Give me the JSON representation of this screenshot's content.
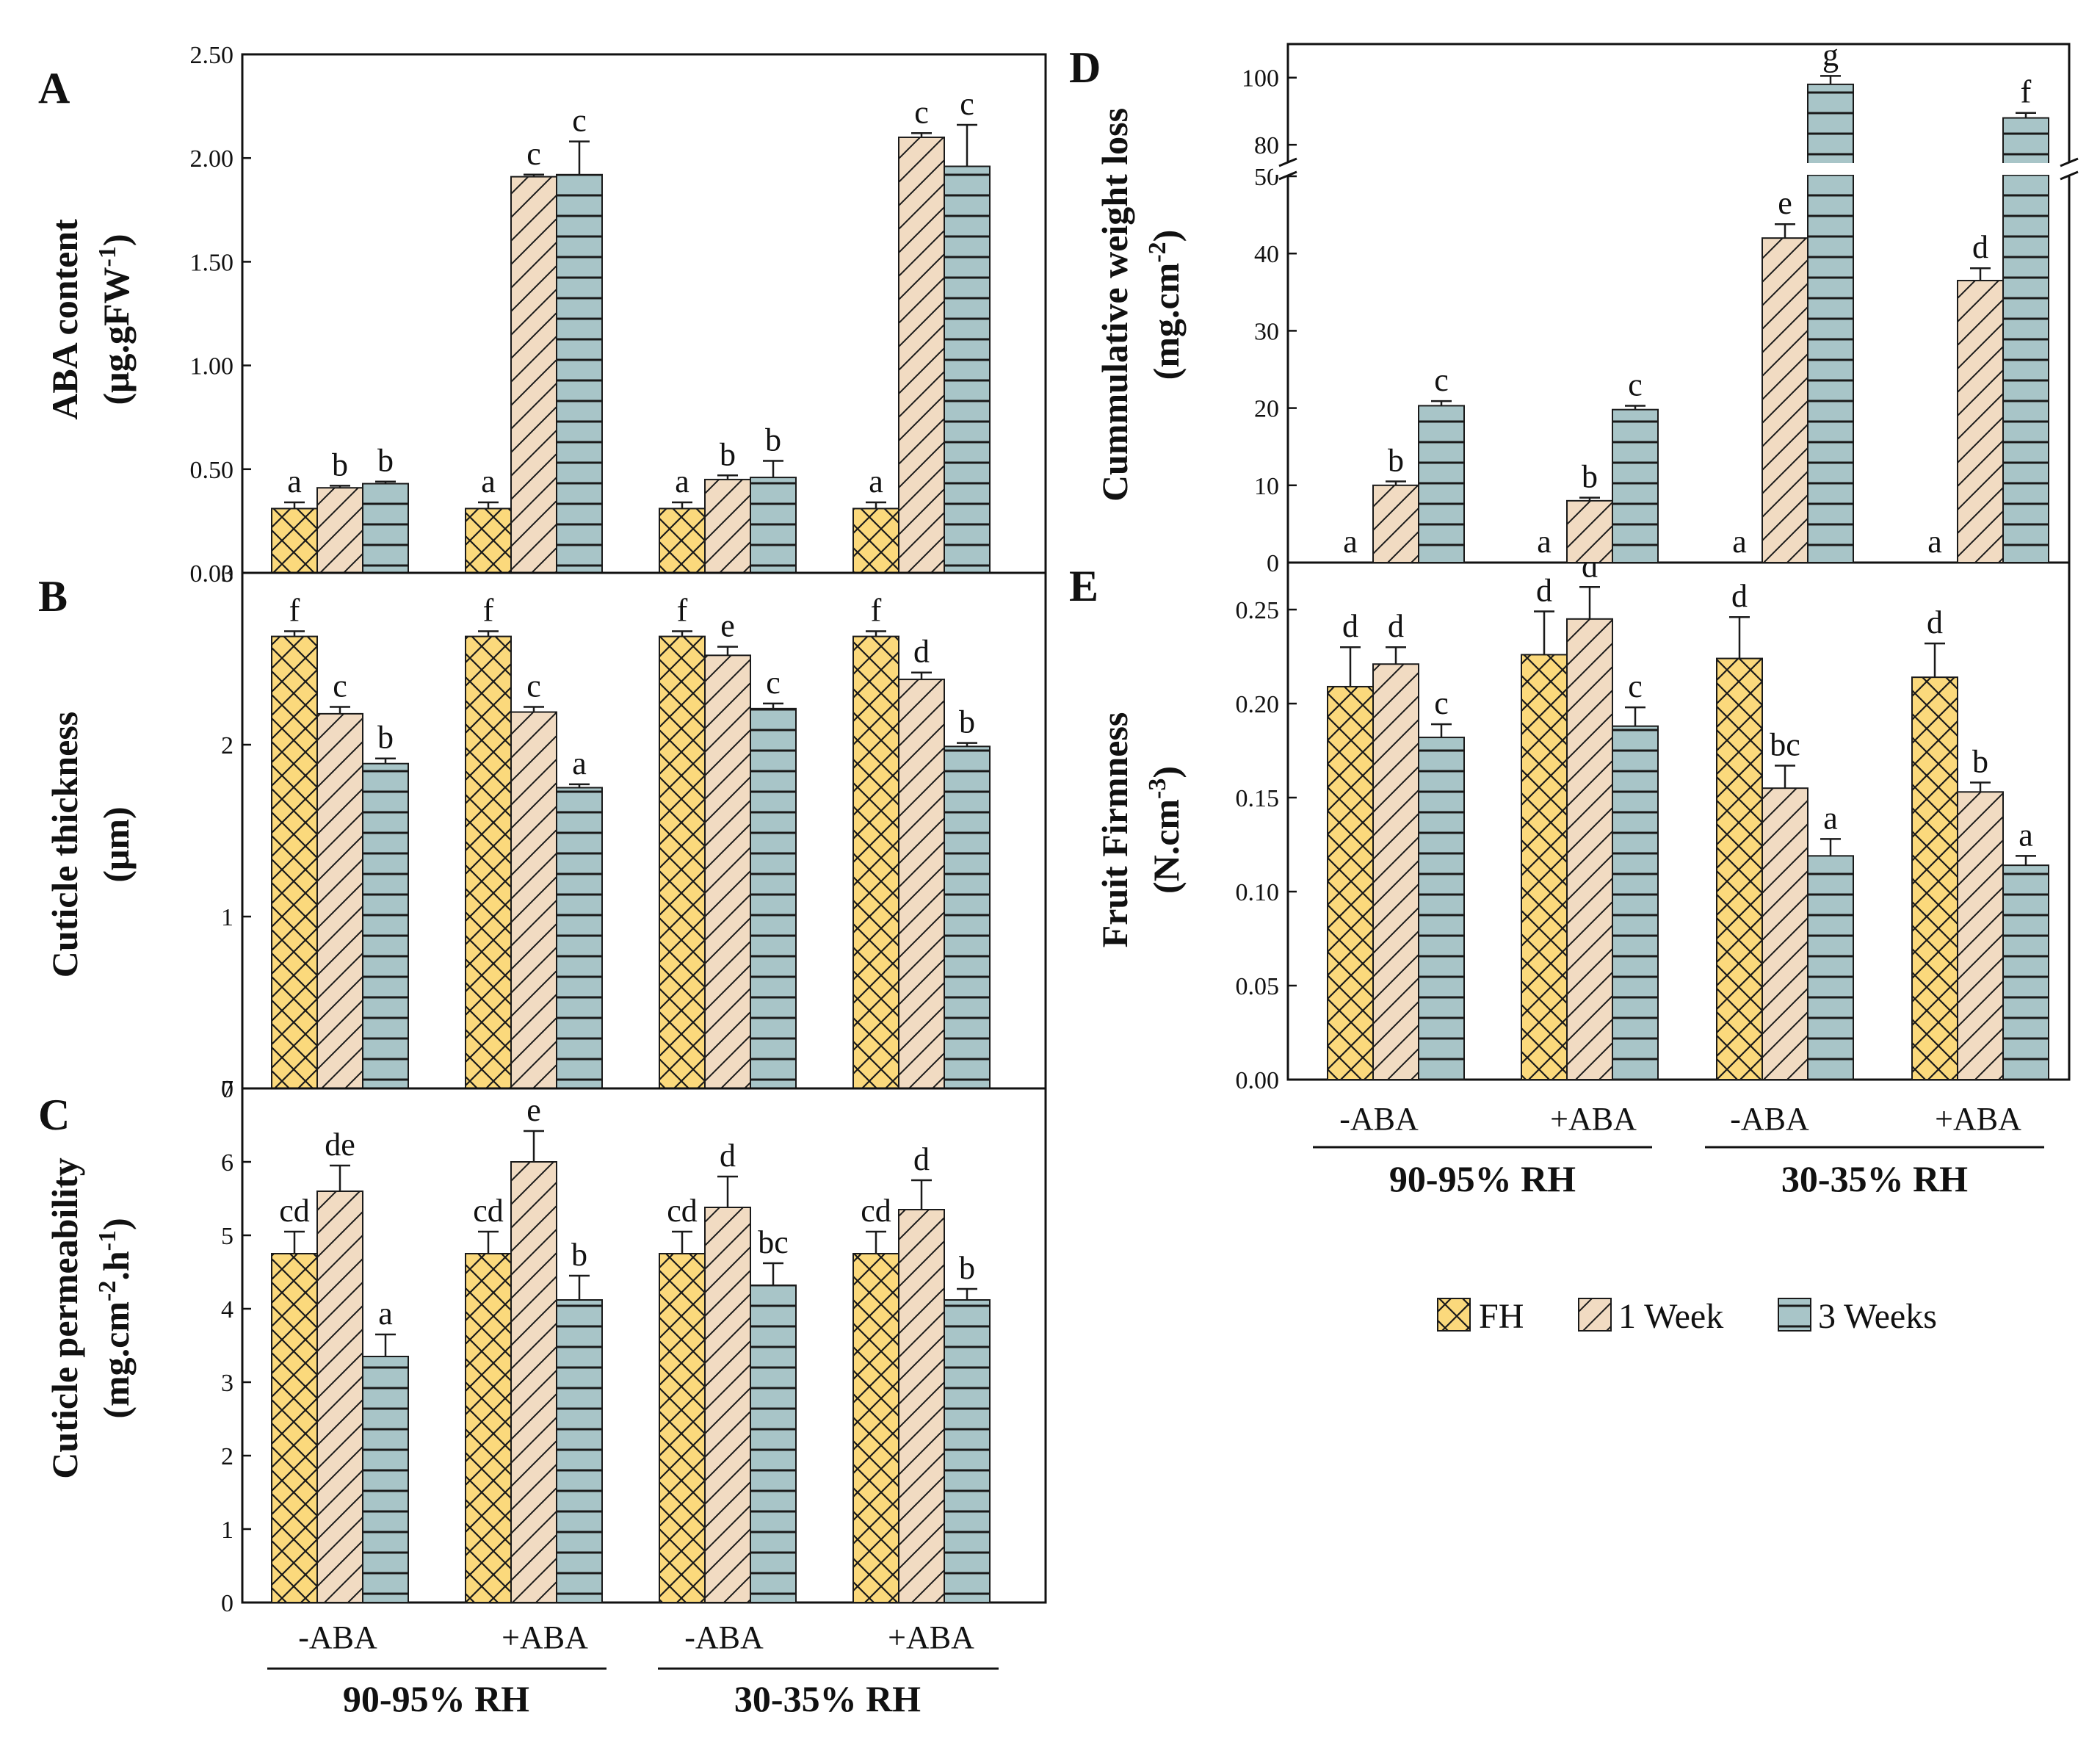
{
  "colors": {
    "FH": "#fbd97c",
    "1 Week": "#f1dbc2",
    "3 Weeks": "#a8c5c8",
    "stroke": "#1a1a1a"
  },
  "legend": [
    "FH",
    "1 Week",
    "3 Weeks"
  ],
  "x_groups": {
    "treatments": [
      "-ABA",
      "+ABA",
      "-ABA",
      "+ABA"
    ],
    "rh": [
      "90-95% RH",
      "30-35% RH"
    ]
  },
  "chart_data": [
    {
      "id": "A",
      "panel": "A",
      "type": "bar",
      "ylabel_line1": "ABA content",
      "ylabel_line2": "(μg.gFW",
      "ylabel_sup2": "-1",
      "ylabel_tail2": ")",
      "ylim": [
        0,
        2.5
      ],
      "yticks": [
        0,
        0.5,
        1.0,
        1.5,
        2.0,
        2.5
      ],
      "ytick_labels": [
        "0.00",
        "0.50",
        "1.00",
        "1.50",
        "2.00",
        "2.50"
      ],
      "categories": [
        "-ABA 90-95% RH",
        "+ABA 90-95% RH",
        "-ABA 30-35% RH",
        "+ABA 30-35% RH"
      ],
      "series": [
        {
          "name": "FH",
          "values": [
            0.31,
            0.31,
            0.31,
            0.31
          ],
          "errors": [
            0.03,
            0.03,
            0.03,
            0.03
          ],
          "letters": [
            "a",
            "a",
            "a",
            "a"
          ]
        },
        {
          "name": "1 Week",
          "values": [
            0.41,
            1.91,
            0.45,
            2.1
          ],
          "errors": [
            0.01,
            0.01,
            0.02,
            0.02
          ],
          "letters": [
            "b",
            "c",
            "b",
            "c"
          ]
        },
        {
          "name": "3 Weeks",
          "values": [
            0.43,
            1.92,
            0.46,
            1.96
          ],
          "errors": [
            0.01,
            0.16,
            0.08,
            0.2
          ],
          "letters": [
            "b",
            "c",
            "b",
            "c"
          ]
        }
      ]
    },
    {
      "id": "B",
      "panel": "B",
      "type": "bar",
      "ylabel_line1": "Cuticle thickness",
      "ylabel_line2": "(μm)",
      "ylim": [
        0,
        3
      ],
      "yticks": [
        0,
        1,
        2,
        3
      ],
      "ytick_labels": [
        "0",
        "1",
        "2",
        "3"
      ],
      "categories": [
        "-ABA 90-95% RH",
        "+ABA 90-95% RH",
        "-ABA 30-35% RH",
        "+ABA 30-35% RH"
      ],
      "series": [
        {
          "name": "FH",
          "values": [
            2.63,
            2.63,
            2.63,
            2.63
          ],
          "errors": [
            0.03,
            0.03,
            0.03,
            0.03
          ],
          "letters": [
            "f",
            "f",
            "f",
            "f"
          ]
        },
        {
          "name": "1 Week",
          "values": [
            2.18,
            2.19,
            2.52,
            2.38
          ],
          "errors": [
            0.04,
            0.03,
            0.05,
            0.04
          ],
          "letters": [
            "c",
            "c",
            "e",
            "d"
          ]
        },
        {
          "name": "3 Weeks",
          "values": [
            1.89,
            1.75,
            2.21,
            1.99
          ],
          "errors": [
            0.03,
            0.02,
            0.03,
            0.02
          ],
          "letters": [
            "b",
            "a",
            "c",
            "b"
          ]
        }
      ]
    },
    {
      "id": "C",
      "panel": "C",
      "type": "bar",
      "ylabel_line1": "Cuticle permeability",
      "ylabel_line2": "(mg.cm",
      "ylabel_sup2": "-2",
      "ylabel_mid2": ".h",
      "ylabel_sup2b": "-1",
      "ylabel_tail2": ")",
      "ylim": [
        0,
        7
      ],
      "yticks": [
        0,
        1,
        2,
        3,
        4,
        5,
        6,
        7
      ],
      "ytick_labels": [
        "0",
        "1",
        "2",
        "3",
        "4",
        "5",
        "6",
        "7"
      ],
      "categories": [
        "-ABA 90-95% RH",
        "+ABA 90-95% RH",
        "-ABA 30-35% RH",
        "+ABA 30-35% RH"
      ],
      "series": [
        {
          "name": "FH",
          "values": [
            4.75,
            4.75,
            4.75,
            4.75
          ],
          "errors": [
            0.3,
            0.3,
            0.3,
            0.3
          ],
          "letters": [
            "cd",
            "cd",
            "cd",
            "cd"
          ]
        },
        {
          "name": "1 Week",
          "values": [
            5.6,
            6.0,
            5.38,
            5.35
          ],
          "errors": [
            0.35,
            0.42,
            0.42,
            0.4
          ],
          "letters": [
            "de",
            "e",
            "d",
            "d"
          ]
        },
        {
          "name": "3 Weeks",
          "values": [
            3.35,
            4.12,
            4.32,
            4.12
          ],
          "errors": [
            0.3,
            0.33,
            0.3,
            0.15
          ],
          "letters": [
            "a",
            "b",
            "bc",
            "b"
          ]
        }
      ]
    },
    {
      "id": "D",
      "panel": "D",
      "type": "bar",
      "ylabel_line1": "Cummulative weight loss",
      "ylabel_line2": "(mg.cm",
      "ylabel_sup2": "-2",
      "ylabel_tail2": ")",
      "axis_break": [
        50,
        75
      ],
      "ylim_lower": [
        0,
        50
      ],
      "ylim_upper": [
        75,
        110
      ],
      "yticks_lower": [
        0,
        10,
        20,
        30,
        40,
        50
      ],
      "yticks_upper": [
        80,
        100
      ],
      "ytick_labels_lower": [
        "0",
        "10",
        "20",
        "30",
        "40",
        "50"
      ],
      "ytick_labels_upper": [
        "80",
        "100"
      ],
      "categories": [
        "-ABA 90-95% RH",
        "+ABA 90-95% RH",
        "-ABA 30-35% RH",
        "+ABA 30-35% RH"
      ],
      "series": [
        {
          "name": "FH",
          "values": [
            0,
            0,
            0,
            0
          ],
          "errors": [
            0,
            0,
            0,
            0
          ],
          "letters": [
            "a",
            "a",
            "a",
            "a"
          ]
        },
        {
          "name": "1 Week",
          "values": [
            10,
            8,
            42,
            36.5
          ],
          "errors": [
            0.5,
            0.4,
            1.8,
            1.6
          ],
          "letters": [
            "b",
            "b",
            "e",
            "d"
          ]
        },
        {
          "name": "3 Weeks",
          "values": [
            20.3,
            19.8,
            98,
            88
          ],
          "errors": [
            0.6,
            0.5,
            2.5,
            1.5
          ],
          "letters": [
            "c",
            "c",
            "g",
            "f"
          ]
        }
      ]
    },
    {
      "id": "E",
      "panel": "E",
      "type": "bar",
      "ylabel_line1": "Fruit Firmness",
      "ylabel_line2": "(N.cm",
      "ylabel_sup2": "-3",
      "ylabel_tail2": ")",
      "ylim": [
        0,
        0.275
      ],
      "yticks": [
        0,
        0.05,
        0.1,
        0.15,
        0.2,
        0.25
      ],
      "ytick_labels": [
        "0.00",
        "0.05",
        "0.10",
        "0.15",
        "0.20",
        "0.25"
      ],
      "categories": [
        "-ABA 90-95% RH",
        "+ABA 90-95% RH",
        "-ABA 30-35% RH",
        "+ABA 30-35% RH"
      ],
      "series": [
        {
          "name": "FH",
          "values": [
            0.209,
            0.226,
            0.224,
            0.214
          ],
          "errors": [
            0.021,
            0.023,
            0.022,
            0.018
          ],
          "letters": [
            "d",
            "d",
            "d",
            "d"
          ]
        },
        {
          "name": "1 Week",
          "values": [
            0.221,
            0.245,
            0.155,
            0.153
          ],
          "errors": [
            0.009,
            0.017,
            0.012,
            0.005
          ],
          "letters": [
            "d",
            "d",
            "bc",
            "b"
          ]
        },
        {
          "name": "3 Weeks",
          "values": [
            0.182,
            0.188,
            0.119,
            0.114
          ],
          "errors": [
            0.007,
            0.01,
            0.009,
            0.005
          ],
          "letters": [
            "c",
            "c",
            "a",
            "a"
          ]
        }
      ]
    }
  ]
}
